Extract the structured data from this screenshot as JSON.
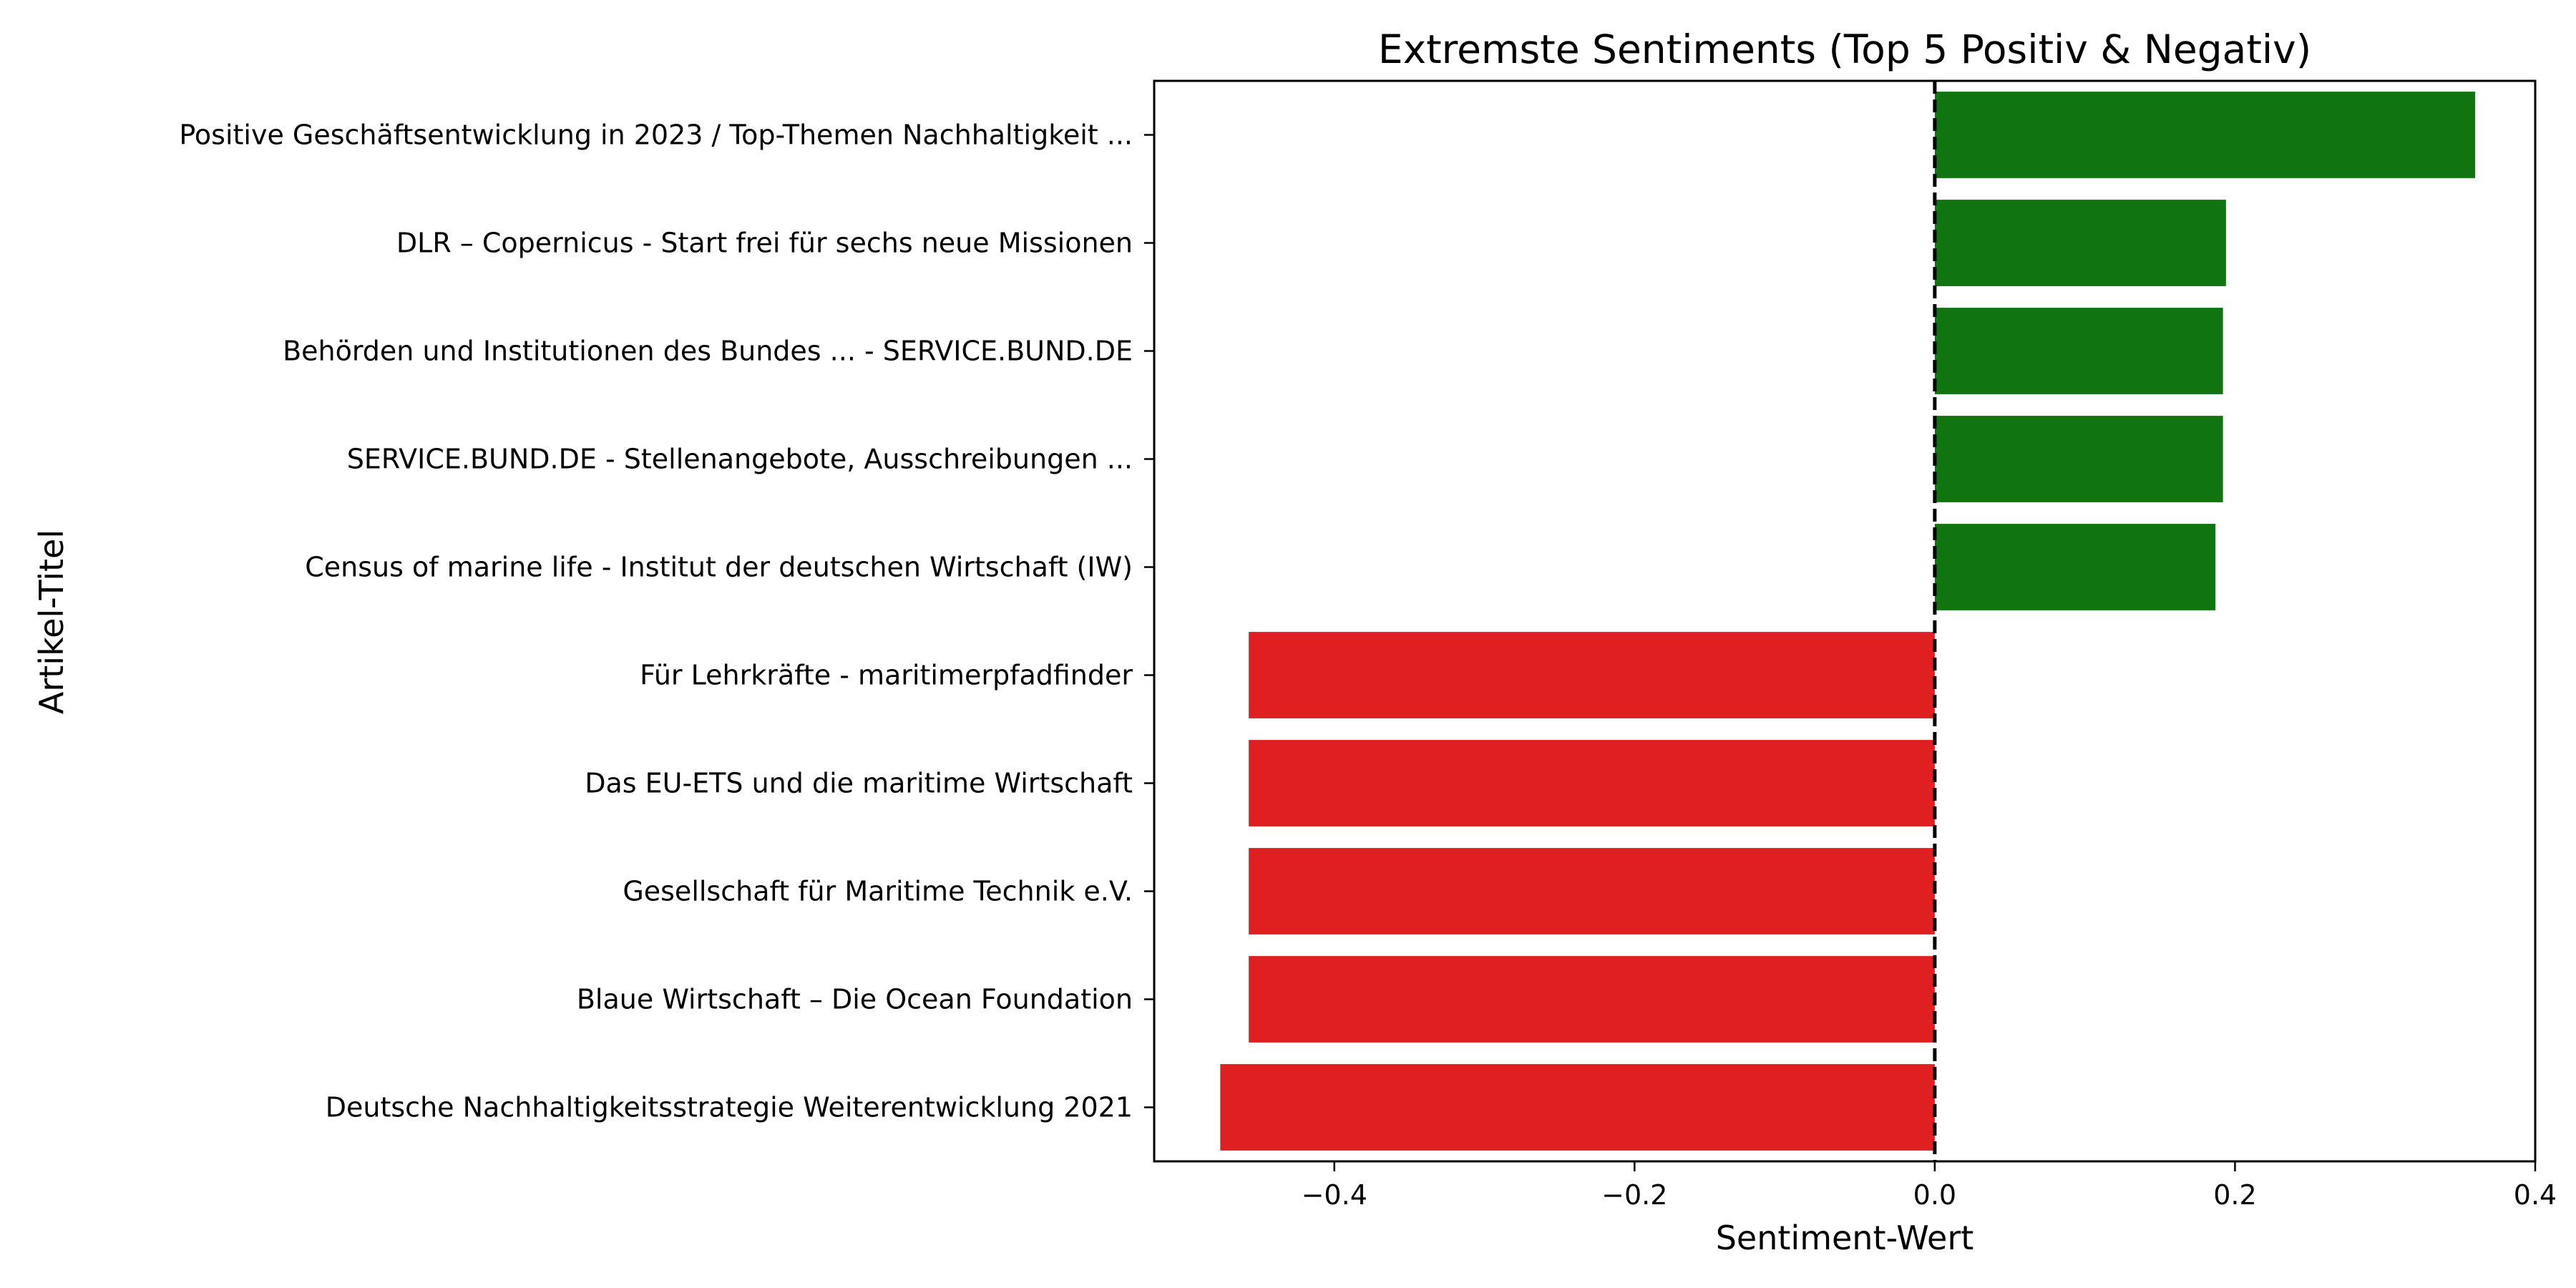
{
  "chart_data": {
    "type": "bar",
    "orientation": "horizontal",
    "title": "Extremste Sentiments (Top 5 Positiv & Negativ)",
    "xlabel": "Sentiment-Wert",
    "ylabel": "Artikel-Titel",
    "xlim": [
      -0.52,
      0.4
    ],
    "xticks": [
      -0.4,
      -0.2,
      0.0,
      0.2,
      0.4
    ],
    "xtick_labels": [
      "−0.4",
      "−0.2",
      "0.0",
      "0.2",
      "0.4"
    ],
    "reference_line": {
      "x": 0.0,
      "style": "dashed",
      "color": "#000000"
    },
    "grid": false,
    "legend": "none",
    "positive_color": "#107510",
    "negative_color": "#e02020",
    "categories": [
      "Positive Geschäftsentwicklung in 2023 / Top-Themen Nachhaltigkeit ...",
      "DLR – Copernicus - Start frei für sechs neue Missionen",
      "Behörden und Institutionen des Bundes ... - SERVICE.BUND.DE",
      "SERVICE.BUND.DE - Stellenangebote, Ausschreibungen ...",
      "Census of marine life - Institut der deutschen Wirtschaft (IW)",
      "Für Lehrkräfte - maritimerpfadfinder",
      "Das EU-ETS und die maritime Wirtschaft",
      "Gesellschaft für Maritime Technik e.V.",
      "Blaue Wirtschaft – Die Ocean Foundation",
      "Deutsche Nachhaltigkeitsstrategie Weiterentwicklung 2021"
    ],
    "values": [
      0.36,
      0.194,
      0.192,
      0.192,
      0.187,
      -0.457,
      -0.457,
      -0.457,
      -0.457,
      -0.476
    ]
  }
}
